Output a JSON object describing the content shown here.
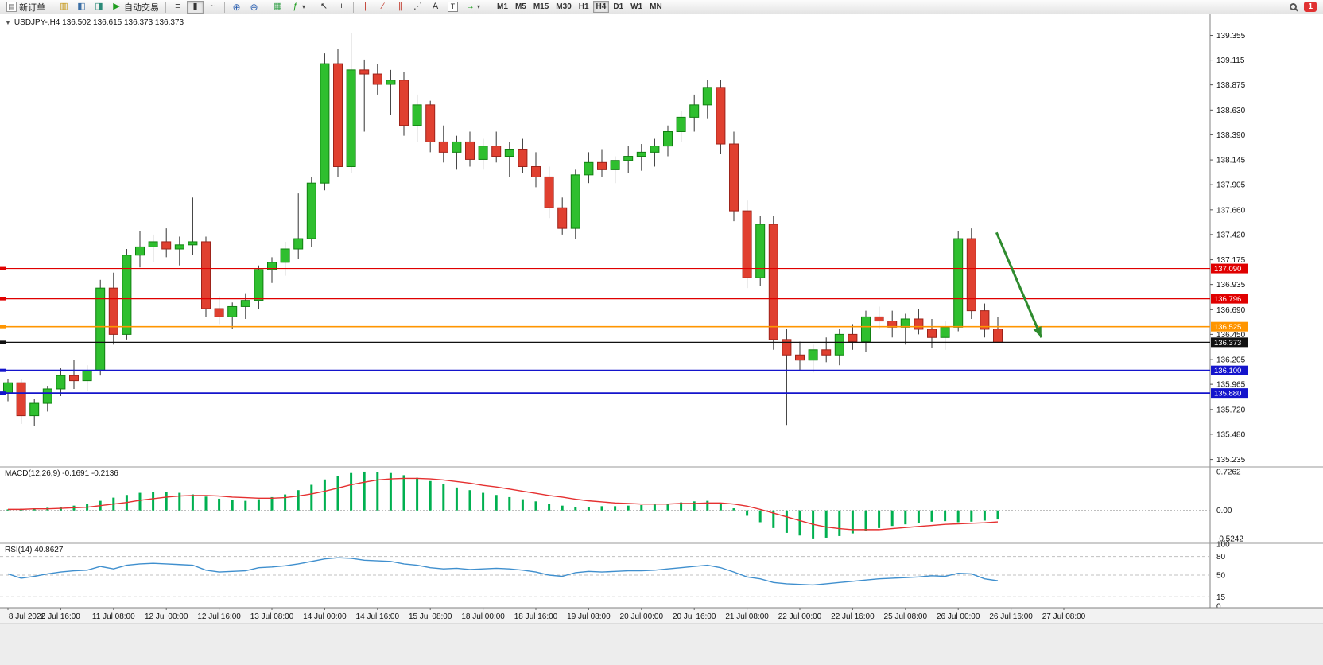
{
  "toolbar": {
    "new_order_label": "新订单",
    "auto_trading_label": "自动交易",
    "timeframes": [
      "M1",
      "M5",
      "M15",
      "M30",
      "H1",
      "H4",
      "D1",
      "W1",
      "MN"
    ],
    "active_timeframe": "H4",
    "notification_count": "1",
    "icon_glyphs": {
      "new_order": "▤",
      "charts": "▥",
      "profiles": "◧",
      "market_watch": "◨",
      "auto_trading": "▶",
      "bar_chart": "≡",
      "candle_chart": "▮",
      "line_chart": "~",
      "zoom_in": "⊕",
      "zoom_out": "⊖",
      "tile_windows": "▦",
      "indicators": "ƒ",
      "cursor": "↖",
      "crosshair": "+",
      "vertical_line": "|",
      "trendline": "∕",
      "channel": "∥",
      "fibonacci": "⋰",
      "text_tool": "A",
      "label_tool": "T",
      "arrows_tool": "→",
      "dropdown": "▾"
    }
  },
  "chart": {
    "symbol_line": "USDJPY-,H4 136.502 136.615 136.373 136.373",
    "collapse_glyph": "▼",
    "macd_label": "MACD(12,26,9) -0.1691 -0.2136",
    "rsi_label": "RSI(14) 40.8627"
  },
  "chart_data": {
    "type": "candlestick",
    "symbol": "USDJPY-",
    "timeframe": "H4",
    "current_bar": {
      "open": 136.502,
      "high": 136.615,
      "low": 136.373,
      "close": 136.373
    },
    "price_axis_ticks": [
      "139.355",
      "139.115",
      "138.875",
      "138.630",
      "138.390",
      "138.145",
      "137.905",
      "137.660",
      "137.420",
      "137.175",
      "136.935",
      "136.690",
      "136.450",
      "136.205",
      "135.965",
      "135.720",
      "135.480",
      "135.235"
    ],
    "time_labels": [
      "8 Jul 2022",
      "8 Jul 16:00",
      "11 Jul 08:00",
      "12 Jul 00:00",
      "12 Jul 16:00",
      "13 Jul 08:00",
      "14 Jul 00:00",
      "14 Jul 16:00",
      "15 Jul 08:00",
      "18 Jul 00:00",
      "18 Jul 16:00",
      "19 Jul 08:00",
      "20 Jul 00:00",
      "20 Jul 16:00",
      "21 Jul 08:00",
      "22 Jul 00:00",
      "22 Jul 16:00",
      "25 Jul 08:00",
      "26 Jul 00:00",
      "26 Jul 16:00",
      "27 Jul 08:00"
    ],
    "candles": [
      [
        135.88,
        136.02,
        135.8,
        135.98
      ],
      [
        135.98,
        136.02,
        135.58,
        135.66
      ],
      [
        135.66,
        135.82,
        135.56,
        135.78
      ],
      [
        135.78,
        135.95,
        135.7,
        135.92
      ],
      [
        135.92,
        136.12,
        135.85,
        136.05
      ],
      [
        136.05,
        136.2,
        135.92,
        136.0
      ],
      [
        136.0,
        136.15,
        135.9,
        136.1
      ],
      [
        136.1,
        136.98,
        136.05,
        136.9
      ],
      [
        136.9,
        137.05,
        136.35,
        136.45
      ],
      [
        136.45,
        137.28,
        136.4,
        137.22
      ],
      [
        137.22,
        137.45,
        137.1,
        137.3
      ],
      [
        137.3,
        137.42,
        137.15,
        137.35
      ],
      [
        137.35,
        137.48,
        137.2,
        137.28
      ],
      [
        137.28,
        137.4,
        137.12,
        137.32
      ],
      [
        137.32,
        137.78,
        137.22,
        137.35
      ],
      [
        137.35,
        137.4,
        136.62,
        136.7
      ],
      [
        136.7,
        136.82,
        136.55,
        136.62
      ],
      [
        136.62,
        136.76,
        136.5,
        136.72
      ],
      [
        136.72,
        136.85,
        136.6,
        136.78
      ],
      [
        136.78,
        137.12,
        136.7,
        137.08
      ],
      [
        137.08,
        137.2,
        136.95,
        137.15
      ],
      [
        137.15,
        137.35,
        137.02,
        137.28
      ],
      [
        137.28,
        137.82,
        137.18,
        137.38
      ],
      [
        137.38,
        137.98,
        137.3,
        137.92
      ],
      [
        137.92,
        139.18,
        137.85,
        139.08
      ],
      [
        139.08,
        139.22,
        137.98,
        138.08
      ],
      [
        138.08,
        139.38,
        138.02,
        139.02
      ],
      [
        139.02,
        139.12,
        138.42,
        138.98
      ],
      [
        138.98,
        139.08,
        138.78,
        138.88
      ],
      [
        138.88,
        139.02,
        138.58,
        138.92
      ],
      [
        138.92,
        139.0,
        138.38,
        138.48
      ],
      [
        138.48,
        138.78,
        138.32,
        138.68
      ],
      [
        138.68,
        138.72,
        138.22,
        138.32
      ],
      [
        138.32,
        138.48,
        138.12,
        138.22
      ],
      [
        138.22,
        138.38,
        138.05,
        138.32
      ],
      [
        138.32,
        138.42,
        138.08,
        138.15
      ],
      [
        138.15,
        138.35,
        138.05,
        138.28
      ],
      [
        138.28,
        138.42,
        138.12,
        138.18
      ],
      [
        138.18,
        138.32,
        137.98,
        138.25
      ],
      [
        138.25,
        138.35,
        138.02,
        138.08
      ],
      [
        138.08,
        138.22,
        137.88,
        137.98
      ],
      [
        137.98,
        138.08,
        137.58,
        137.68
      ],
      [
        137.68,
        137.78,
        137.42,
        137.48
      ],
      [
        137.48,
        138.05,
        137.38,
        138.0
      ],
      [
        138.0,
        138.22,
        137.92,
        138.12
      ],
      [
        138.12,
        138.25,
        137.98,
        138.05
      ],
      [
        138.05,
        138.18,
        137.92,
        138.14
      ],
      [
        138.14,
        138.28,
        138.02,
        138.18
      ],
      [
        138.18,
        138.3,
        138.04,
        138.22
      ],
      [
        138.22,
        138.35,
        138.08,
        138.28
      ],
      [
        138.28,
        138.48,
        138.18,
        138.42
      ],
      [
        138.42,
        138.62,
        138.32,
        138.56
      ],
      [
        138.56,
        138.78,
        138.42,
        138.68
      ],
      [
        138.68,
        138.92,
        138.55,
        138.85
      ],
      [
        138.85,
        138.92,
        138.2,
        138.3
      ],
      [
        138.3,
        138.42,
        137.55,
        137.65
      ],
      [
        137.65,
        137.75,
        136.9,
        137.0
      ],
      [
        137.0,
        137.6,
        136.92,
        137.52
      ],
      [
        137.52,
        137.6,
        136.3,
        136.4
      ],
      [
        136.4,
        136.5,
        135.57,
        136.25
      ],
      [
        136.25,
        136.38,
        136.1,
        136.2
      ],
      [
        136.2,
        136.35,
        136.08,
        136.3
      ],
      [
        136.3,
        136.42,
        136.18,
        136.25
      ],
      [
        136.25,
        136.5,
        136.15,
        136.45
      ],
      [
        136.45,
        136.55,
        136.3,
        136.38
      ],
      [
        136.38,
        136.68,
        136.28,
        136.62
      ],
      [
        136.62,
        136.72,
        136.5,
        136.58
      ],
      [
        136.58,
        136.68,
        136.42,
        136.52
      ],
      [
        136.52,
        136.65,
        136.35,
        136.6
      ],
      [
        136.6,
        136.7,
        136.45,
        136.5
      ],
      [
        136.5,
        136.6,
        136.32,
        136.42
      ],
      [
        136.42,
        136.58,
        136.3,
        136.52
      ],
      [
        136.52,
        137.45,
        136.48,
        137.38
      ],
      [
        137.38,
        137.48,
        136.6,
        136.68
      ],
      [
        136.68,
        136.75,
        136.42,
        136.5
      ],
      [
        136.502,
        136.615,
        136.373,
        136.373
      ]
    ],
    "hlines": [
      {
        "price": 137.09,
        "label": "137.090",
        "color": "#e00000",
        "width": 1.2
      },
      {
        "price": 136.796,
        "label": "136.796",
        "color": "#e00000",
        "width": 1.2
      },
      {
        "price": 136.525,
        "label": "136.525",
        "color": "#ff9500",
        "width": 1.6
      },
      {
        "price": 136.373,
        "label": "136.373",
        "color": "#111111",
        "width": 1.2
      },
      {
        "price": 136.1,
        "label": "136.100",
        "color": "#1414cc",
        "width": 1.8
      },
      {
        "price": 135.88,
        "label": "135.880",
        "color": "#1414cc",
        "width": 1.8
      }
    ],
    "arrow": {
      "from_bar": 74.9,
      "from_price": 137.44,
      "to_bar": 78.3,
      "to_price": 136.42,
      "color": "#2e8b2e"
    },
    "macd": {
      "label": "MACD(12,26,9)",
      "main_value": "-0.1691",
      "signal_value": "-0.2136",
      "axis_ticks": [
        "0.7262",
        "0.00",
        "-0.5242"
      ],
      "histogram": [
        0.02,
        0.03,
        0.04,
        0.05,
        0.07,
        0.09,
        0.12,
        0.18,
        0.24,
        0.29,
        0.33,
        0.35,
        0.35,
        0.33,
        0.3,
        0.26,
        0.22,
        0.19,
        0.18,
        0.21,
        0.25,
        0.3,
        0.38,
        0.48,
        0.58,
        0.65,
        0.7,
        0.7262,
        0.72,
        0.7,
        0.66,
        0.61,
        0.55,
        0.49,
        0.43,
        0.38,
        0.33,
        0.29,
        0.25,
        0.21,
        0.17,
        0.13,
        0.09,
        0.07,
        0.07,
        0.08,
        0.08,
        0.09,
        0.1,
        0.11,
        0.13,
        0.15,
        0.17,
        0.18,
        0.14,
        0.04,
        -0.1,
        -0.22,
        -0.33,
        -0.42,
        -0.47,
        -0.5242,
        -0.51,
        -0.48,
        -0.43,
        -0.38,
        -0.33,
        -0.29,
        -0.26,
        -0.23,
        -0.21,
        -0.2,
        -0.22,
        -0.21,
        -0.19,
        -0.1691
      ],
      "signal": [
        0.02,
        0.02,
        0.03,
        0.03,
        0.04,
        0.05,
        0.06,
        0.09,
        0.12,
        0.15,
        0.19,
        0.22,
        0.25,
        0.27,
        0.28,
        0.28,
        0.27,
        0.25,
        0.24,
        0.23,
        0.23,
        0.24,
        0.27,
        0.31,
        0.36,
        0.42,
        0.48,
        0.53,
        0.57,
        0.59,
        0.6,
        0.6,
        0.59,
        0.57,
        0.54,
        0.51,
        0.47,
        0.44,
        0.4,
        0.36,
        0.32,
        0.28,
        0.25,
        0.21,
        0.18,
        0.16,
        0.14,
        0.13,
        0.12,
        0.12,
        0.12,
        0.13,
        0.13,
        0.14,
        0.14,
        0.12,
        0.08,
        0.02,
        -0.05,
        -0.12,
        -0.19,
        -0.26,
        -0.31,
        -0.34,
        -0.36,
        -0.36,
        -0.36,
        -0.34,
        -0.32,
        -0.3,
        -0.28,
        -0.26,
        -0.25,
        -0.24,
        -0.23,
        -0.2136
      ]
    },
    "rsi": {
      "label": "RSI(14)",
      "value": "40.8627",
      "levels": [
        100,
        80,
        50,
        15,
        0
      ],
      "series": [
        52,
        45,
        48,
        52,
        55,
        57,
        58,
        64,
        60,
        66,
        68,
        69,
        68,
        67,
        66,
        58,
        55,
        56,
        57,
        62,
        63,
        65,
        68,
        72,
        76,
        78,
        77,
        74,
        73,
        72,
        68,
        66,
        62,
        60,
        61,
        59,
        60,
        61,
        60,
        58,
        55,
        50,
        48,
        54,
        56,
        55,
        56,
        57,
        57,
        58,
        60,
        62,
        64,
        66,
        62,
        55,
        47,
        44,
        38,
        36,
        35,
        34,
        36,
        38,
        40,
        42,
        44,
        45,
        46,
        47,
        49,
        48,
        53,
        52,
        44,
        40.86
      ]
    },
    "colors": {
      "up": "#2fbf2f",
      "up_border": "#118011",
      "down": "#e04030",
      "down_border": "#9e231a",
      "macd_hist": "#00b050",
      "macd_signal": "#e53030",
      "rsi_line": "#3f8fce"
    }
  }
}
